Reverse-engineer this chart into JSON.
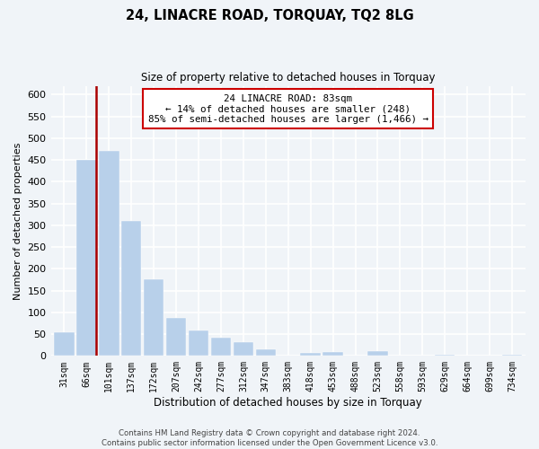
{
  "title": "24, LINACRE ROAD, TORQUAY, TQ2 8LG",
  "subtitle": "Size of property relative to detached houses in Torquay",
  "xlabel": "Distribution of detached houses by size in Torquay",
  "ylabel": "Number of detached properties",
  "bar_labels": [
    "31sqm",
    "66sqm",
    "101sqm",
    "137sqm",
    "172sqm",
    "207sqm",
    "242sqm",
    "277sqm",
    "312sqm",
    "347sqm",
    "383sqm",
    "418sqm",
    "453sqm",
    "488sqm",
    "523sqm",
    "558sqm",
    "593sqm",
    "629sqm",
    "664sqm",
    "699sqm",
    "734sqm"
  ],
  "bar_values": [
    55,
    450,
    470,
    310,
    175,
    88,
    58,
    42,
    32,
    15,
    0,
    7,
    8,
    0,
    10,
    0,
    0,
    3,
    0,
    0,
    2
  ],
  "bar_color": "#b8d0ea",
  "highlight_line_color": "#aa0000",
  "annotation_line1": "24 LINACRE ROAD: 83sqm",
  "annotation_line2": "← 14% of detached houses are smaller (248)",
  "annotation_line3": "85% of semi-detached houses are larger (1,466) →",
  "annotation_box_color": "#ffffff",
  "annotation_box_edge": "#cc0000",
  "ylim": [
    0,
    620
  ],
  "yticks": [
    0,
    50,
    100,
    150,
    200,
    250,
    300,
    350,
    400,
    450,
    500,
    550,
    600
  ],
  "footer_line1": "Contains HM Land Registry data © Crown copyright and database right 2024.",
  "footer_line2": "Contains public sector information licensed under the Open Government Licence v3.0.",
  "fig_width": 6.0,
  "fig_height": 5.0,
  "bg_color": "#f0f4f8"
}
